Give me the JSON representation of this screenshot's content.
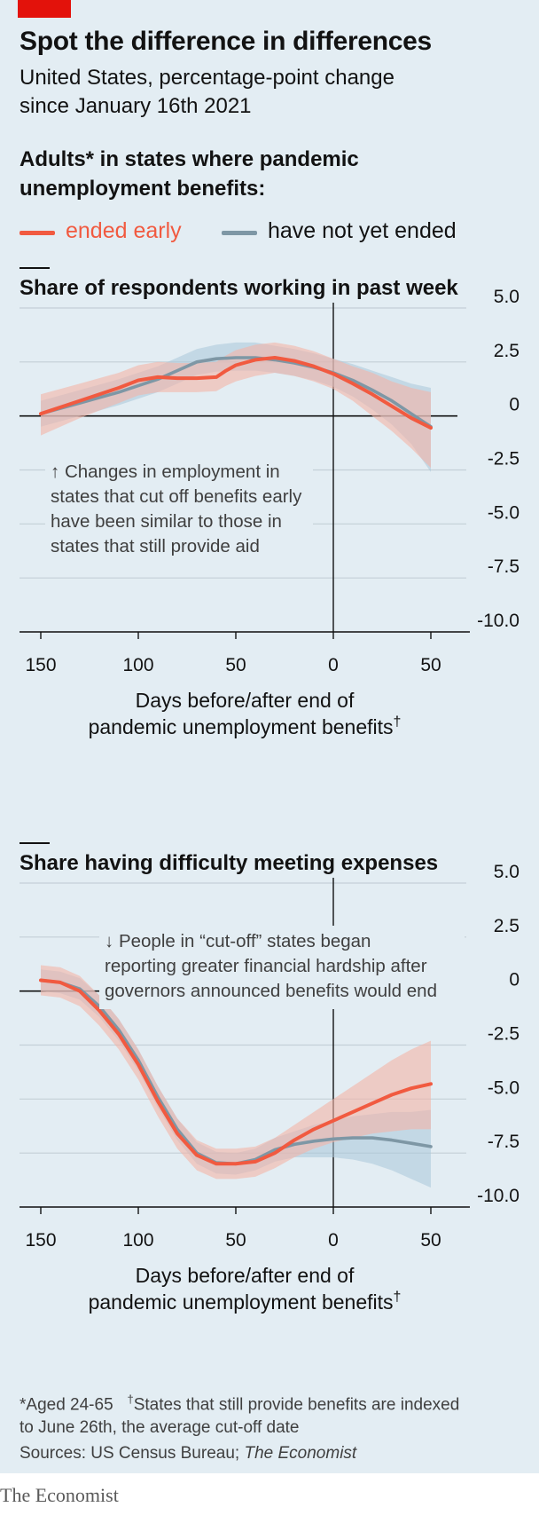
{
  "header": {
    "title": "Spot the difference in differences",
    "subtitle_line1": "United States, percentage-point change",
    "subtitle_line2": "since January 16th 2021"
  },
  "legend": {
    "heading_line1": "Adults* in states where pandemic",
    "heading_line2": "unemployment benefits:",
    "ended_early": "ended early",
    "not_ended": "have not yet ended"
  },
  "colors": {
    "background": "#e3edf3",
    "ended_early": "#f15a40",
    "not_ended": "#7e97a5",
    "ended_band": "#f3b4a6",
    "not_ended_band": "#a9c7d8",
    "brand_red": "#e3120b"
  },
  "chart_data": [
    {
      "type": "line",
      "title": "Share of respondents working in past week",
      "xlabel_line1": "Days before/after end of",
      "xlabel_line2": "pandemic unemployment benefits",
      "xlabel_marker": "†",
      "x_reversed": true,
      "xlim": [
        -50,
        150
      ],
      "ylim": [
        -10,
        5
      ],
      "xticks": [
        150,
        100,
        50,
        0,
        -50
      ],
      "xtick_labels": [
        "150",
        "100",
        "50",
        "0",
        "50"
      ],
      "yticks": [
        5,
        2.5,
        0,
        -2.5,
        -5,
        -7.5,
        -10
      ],
      "ytick_labels": [
        "5.0",
        "2.5",
        "0",
        "-2.5",
        "-5.0",
        "-7.5",
        "-10.0"
      ],
      "annotation_lines": [
        "↑ Changes in employment in",
        "states that cut off benefits early",
        "have been similar to those in",
        "states that still provide aid"
      ],
      "series": [
        {
          "key": "ended_early",
          "x": [
            150,
            130,
            110,
            100,
            90,
            80,
            70,
            60,
            55,
            50,
            40,
            30,
            20,
            10,
            0,
            -10,
            -20,
            -30,
            -40,
            -50
          ],
          "y": [
            0.1,
            0.7,
            1.3,
            1.65,
            1.8,
            1.75,
            1.75,
            1.8,
            2.1,
            2.35,
            2.6,
            2.7,
            2.55,
            2.3,
            1.95,
            1.5,
            1.0,
            0.45,
            -0.1,
            -0.55
          ],
          "band_low": [
            -0.9,
            -0.1,
            0.6,
            0.95,
            1.1,
            1.1,
            1.1,
            1.15,
            1.4,
            1.6,
            1.85,
            2.0,
            1.85,
            1.6,
            1.25,
            0.7,
            0.0,
            -0.7,
            -1.5,
            -2.4
          ],
          "band_high": [
            1.0,
            1.5,
            2.0,
            2.35,
            2.5,
            2.45,
            2.45,
            2.5,
            2.8,
            3.05,
            3.3,
            3.4,
            3.25,
            3.0,
            2.65,
            2.3,
            2.0,
            1.6,
            1.3,
            1.1
          ]
        },
        {
          "key": "not_ended",
          "x": [
            150,
            130,
            110,
            100,
            90,
            80,
            70,
            60,
            50,
            40,
            30,
            20,
            10,
            0,
            -10,
            -20,
            -30,
            -40,
            -50
          ],
          "y": [
            0.1,
            0.6,
            1.1,
            1.4,
            1.7,
            2.1,
            2.5,
            2.65,
            2.7,
            2.7,
            2.6,
            2.45,
            2.25,
            2.0,
            1.65,
            1.2,
            0.7,
            0.1,
            -0.5
          ],
          "band_low": [
            -0.5,
            0.0,
            0.5,
            0.8,
            1.1,
            1.5,
            1.9,
            2.05,
            2.1,
            2.1,
            2.0,
            1.85,
            1.65,
            1.35,
            0.9,
            0.3,
            -0.4,
            -1.3,
            -2.6
          ],
          "band_high": [
            0.7,
            1.2,
            1.7,
            2.0,
            2.3,
            2.7,
            3.1,
            3.3,
            3.4,
            3.4,
            3.25,
            3.1,
            2.9,
            2.65,
            2.4,
            2.1,
            1.8,
            1.5,
            1.3
          ]
        }
      ]
    },
    {
      "type": "line",
      "title": "Share having difficulty meeting expenses",
      "xlabel_line1": "Days before/after end of",
      "xlabel_line2": "pandemic unemployment benefits",
      "xlabel_marker": "†",
      "x_reversed": true,
      "xlim": [
        -50,
        150
      ],
      "ylim": [
        -10,
        5
      ],
      "xticks": [
        150,
        100,
        50,
        0,
        -50
      ],
      "xtick_labels": [
        "150",
        "100",
        "50",
        "0",
        "50"
      ],
      "yticks": [
        5,
        2.5,
        0,
        -2.5,
        -5,
        -7.5,
        -10
      ],
      "ytick_labels": [
        "5.0",
        "2.5",
        "0",
        "-2.5",
        "-5.0",
        "-7.5",
        "-10.0"
      ],
      "annotation_lines": [
        "↓ People in “cut-off” states began",
        "reporting greater financial hardship after",
        "governors announced benefits would end"
      ],
      "series": [
        {
          "key": "ended_early",
          "x": [
            150,
            140,
            130,
            120,
            110,
            100,
            90,
            80,
            70,
            60,
            50,
            40,
            30,
            20,
            10,
            0,
            -10,
            -20,
            -30,
            -40,
            -50
          ],
          "y": [
            0.5,
            0.4,
            0.0,
            -0.9,
            -2.0,
            -3.4,
            -5.1,
            -6.6,
            -7.6,
            -8.0,
            -8.0,
            -7.9,
            -7.5,
            -6.9,
            -6.4,
            -6.0,
            -5.6,
            -5.2,
            -4.8,
            -4.5,
            -4.3
          ],
          "band_low": [
            -0.2,
            -0.3,
            -0.7,
            -1.6,
            -2.7,
            -4.1,
            -5.8,
            -7.3,
            -8.3,
            -8.7,
            -8.7,
            -8.6,
            -8.2,
            -7.7,
            -7.3,
            -7.0,
            -6.8,
            -6.6,
            -6.5,
            -6.4,
            -6.4
          ],
          "band_high": [
            1.2,
            1.1,
            0.7,
            -0.2,
            -1.3,
            -2.7,
            -4.4,
            -5.9,
            -6.9,
            -7.3,
            -7.3,
            -7.2,
            -6.8,
            -6.2,
            -5.6,
            -5.0,
            -4.4,
            -3.8,
            -3.2,
            -2.7,
            -2.3
          ]
        },
        {
          "key": "not_ended",
          "x": [
            150,
            140,
            130,
            120,
            110,
            100,
            90,
            80,
            70,
            60,
            50,
            40,
            30,
            20,
            10,
            0,
            -10,
            -20,
            -30,
            -40,
            -50
          ],
          "y": [
            0.5,
            0.4,
            0.1,
            -0.7,
            -1.8,
            -3.2,
            -4.9,
            -6.4,
            -7.5,
            -7.95,
            -8.0,
            -7.8,
            -7.35,
            -7.1,
            -6.95,
            -6.85,
            -6.8,
            -6.8,
            -6.9,
            -7.05,
            -7.2
          ],
          "band_low": [
            0.0,
            -0.1,
            -0.4,
            -1.2,
            -2.3,
            -3.7,
            -5.4,
            -6.9,
            -8.0,
            -8.45,
            -8.5,
            -8.3,
            -7.9,
            -7.7,
            -7.7,
            -7.7,
            -7.8,
            -8.0,
            -8.3,
            -8.7,
            -9.1
          ],
          "band_high": [
            1.0,
            0.9,
            0.6,
            -0.2,
            -1.3,
            -2.7,
            -4.4,
            -5.9,
            -7.0,
            -7.45,
            -7.5,
            -7.3,
            -6.8,
            -6.5,
            -6.2,
            -6.0,
            -5.8,
            -5.7,
            -5.6,
            -5.6,
            -5.5
          ]
        }
      ]
    }
  ],
  "footnote": {
    "line1_a": "*Aged 24-65",
    "dagger": "†",
    "line1_b": "States that still provide benefits are indexed",
    "line2": "to June 26th, the average cut-off date"
  },
  "sources": {
    "prefix": "Sources: US Census Bureau; ",
    "italic": "The Economist"
  },
  "brand": "The Economist"
}
